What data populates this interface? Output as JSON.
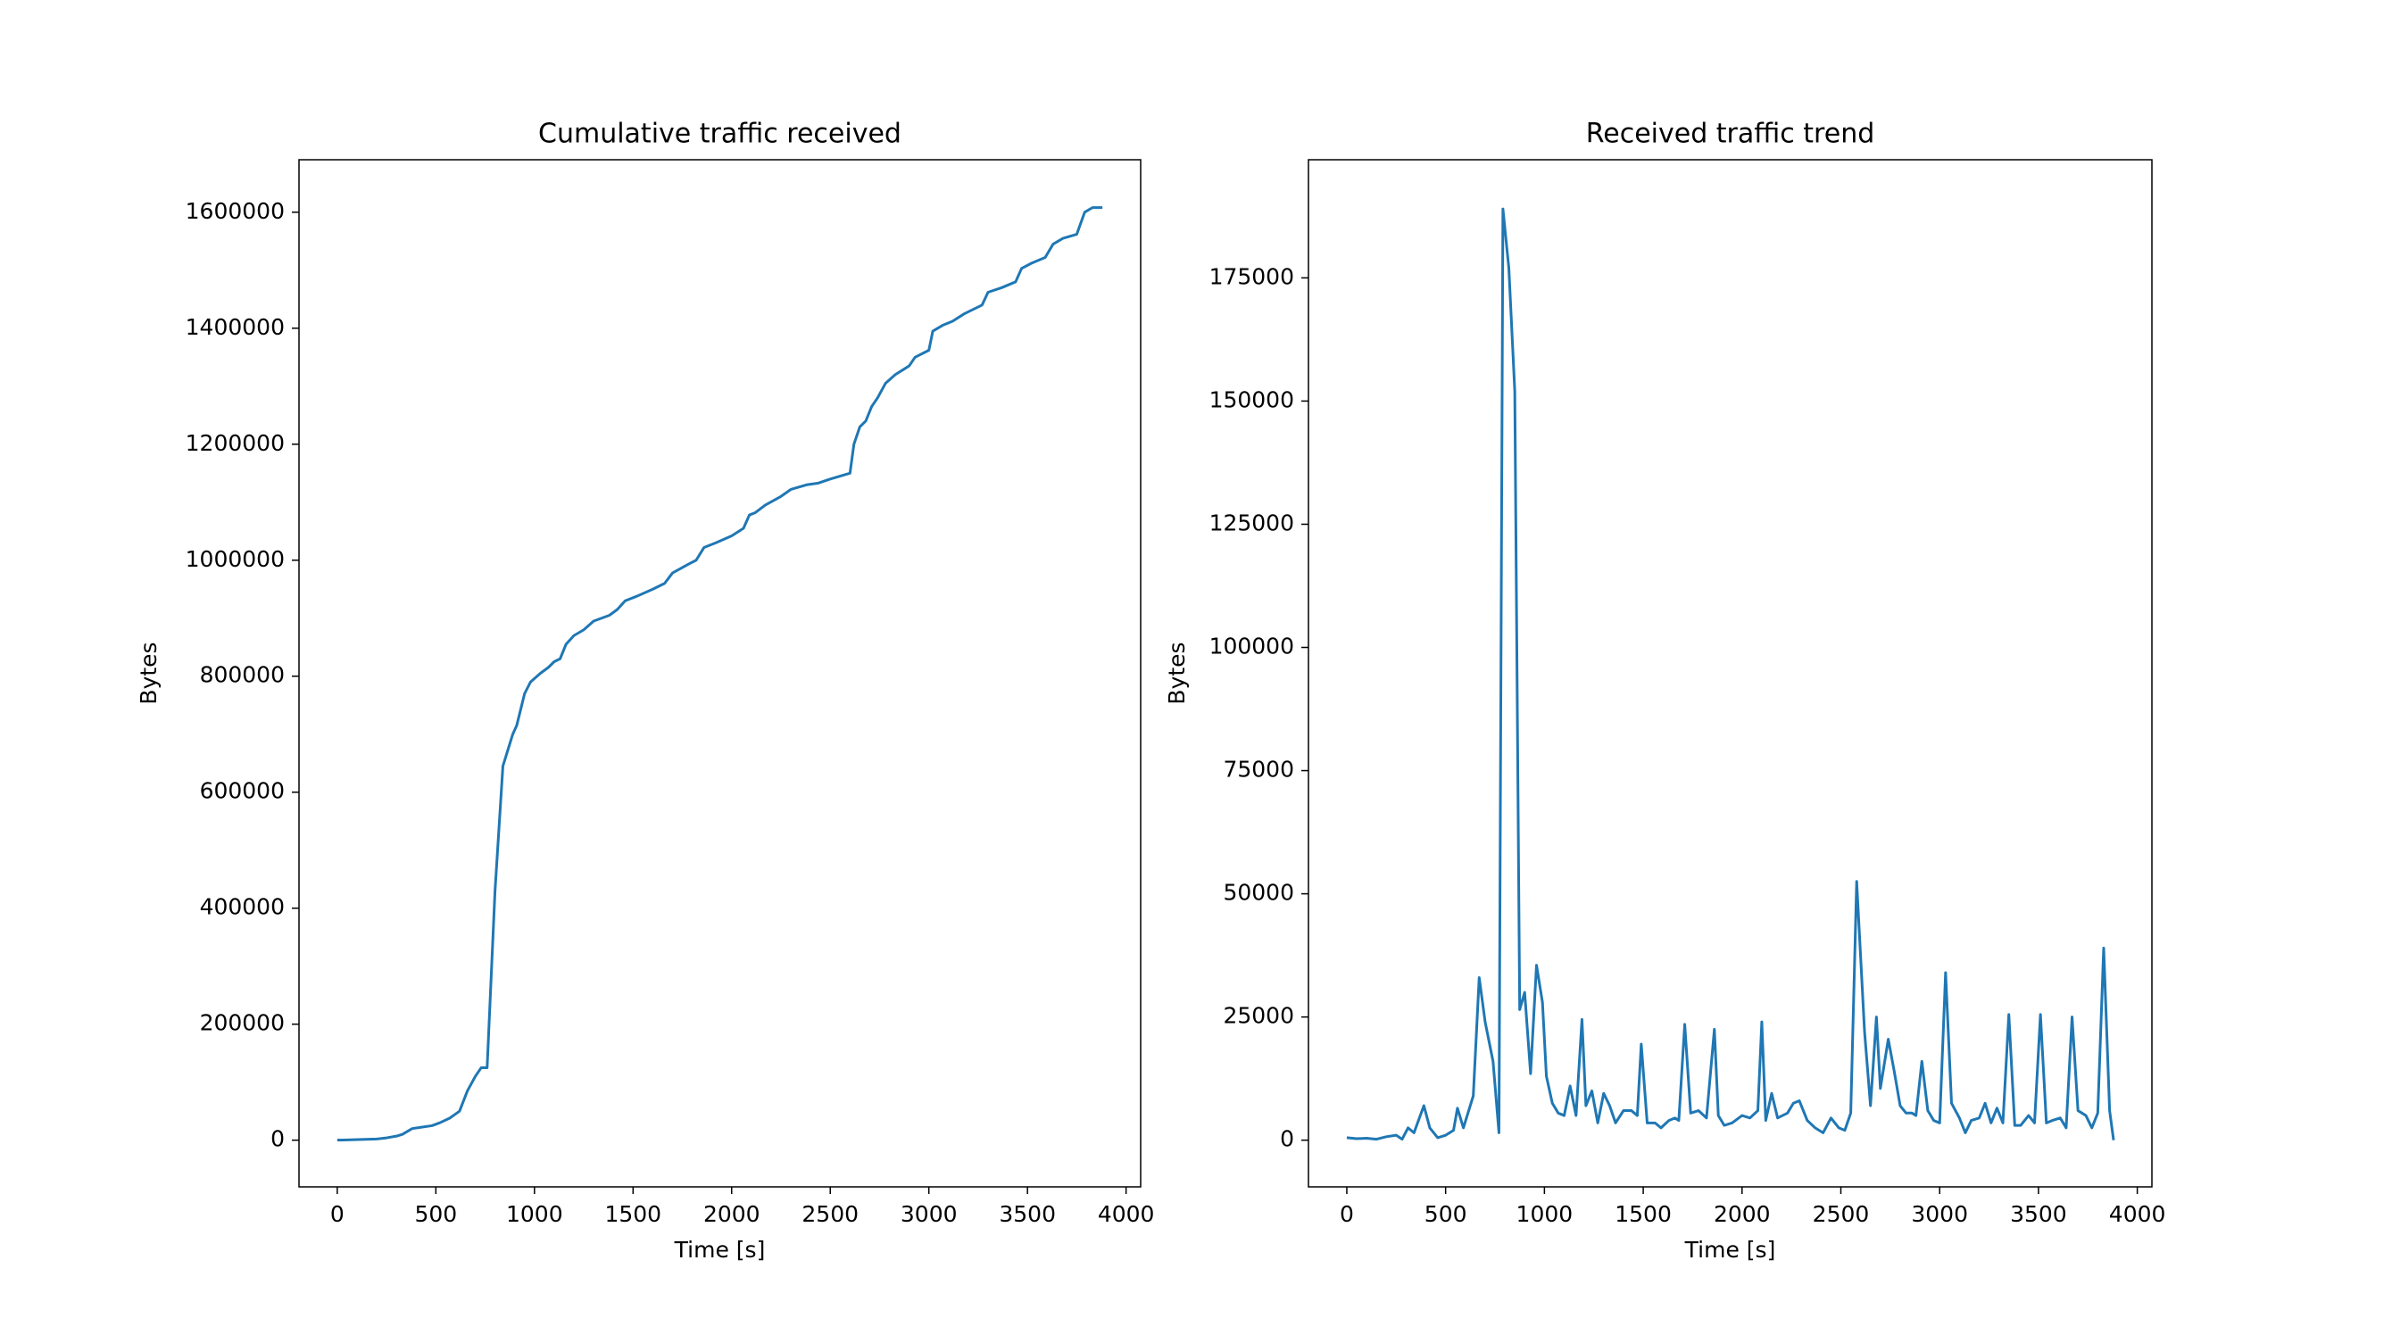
{
  "chart_data": [
    {
      "type": "line",
      "title": "Cumulative traffic received",
      "xlabel": "Time [s]",
      "ylabel": "Bytes",
      "color": "#1f77b4",
      "xlim": [
        -194,
        4074
      ],
      "ylim": [
        -80500,
        1690500
      ],
      "xticks": [
        0,
        500,
        1000,
        1500,
        2000,
        2500,
        3000,
        3500,
        4000
      ],
      "yticks": [
        0,
        200000,
        400000,
        600000,
        800000,
        1000000,
        1200000,
        1400000,
        1600000
      ],
      "x": [
        0,
        200,
        250,
        300,
        330,
        380,
        420,
        480,
        520,
        570,
        620,
        660,
        700,
        730,
        760,
        800,
        840,
        890,
        910,
        950,
        980,
        1030,
        1070,
        1100,
        1130,
        1160,
        1200,
        1250,
        1300,
        1380,
        1420,
        1460,
        1520,
        1600,
        1660,
        1700,
        1780,
        1820,
        1860,
        1920,
        2000,
        2060,
        2090,
        2120,
        2170,
        2250,
        2300,
        2380,
        2440,
        2500,
        2580,
        2600,
        2620,
        2650,
        2680,
        2710,
        2740,
        2780,
        2830,
        2900,
        2930,
        3000,
        3020,
        3070,
        3120,
        3180,
        3270,
        3300,
        3370,
        3440,
        3470,
        3520,
        3590,
        3630,
        3680,
        3750,
        3790,
        3830,
        3880
      ],
      "values": [
        0,
        2000,
        4000,
        7000,
        10000,
        20000,
        22000,
        25000,
        30000,
        38000,
        50000,
        85000,
        110000,
        125000,
        125000,
        430000,
        645000,
        700000,
        715000,
        770000,
        790000,
        805000,
        815000,
        825000,
        830000,
        855000,
        870000,
        880000,
        895000,
        905000,
        915000,
        930000,
        938000,
        950000,
        960000,
        978000,
        993000,
        1000000,
        1022000,
        1030000,
        1042000,
        1055000,
        1078000,
        1082000,
        1095000,
        1110000,
        1122000,
        1130000,
        1133000,
        1140000,
        1148000,
        1150000,
        1200000,
        1230000,
        1240000,
        1265000,
        1280000,
        1305000,
        1320000,
        1335000,
        1350000,
        1362000,
        1395000,
        1405000,
        1412000,
        1425000,
        1440000,
        1462000,
        1470000,
        1480000,
        1503000,
        1512000,
        1522000,
        1545000,
        1555000,
        1562000,
        1600000,
        1608000,
        1608000
      ]
    },
    {
      "type": "line",
      "title": "Received traffic trend",
      "xlabel": "Time [s]",
      "ylabel": "Bytes",
      "color": "#1f77b4",
      "xlim": [
        -194,
        4074
      ],
      "ylim": [
        -9475,
        198975
      ],
      "xticks": [
        0,
        500,
        1000,
        1500,
        2000,
        2500,
        3000,
        3500,
        4000
      ],
      "yticks": [
        0,
        25000,
        50000,
        75000,
        100000,
        125000,
        150000,
        175000
      ],
      "x": [
        0,
        50,
        100,
        150,
        200,
        250,
        280,
        310,
        340,
        390,
        420,
        460,
        500,
        540,
        560,
        590,
        640,
        670,
        700,
        740,
        770,
        790,
        820,
        850,
        875,
        900,
        930,
        960,
        990,
        1010,
        1040,
        1070,
        1100,
        1130,
        1160,
        1190,
        1210,
        1240,
        1270,
        1300,
        1330,
        1360,
        1400,
        1440,
        1470,
        1490,
        1520,
        1560,
        1590,
        1630,
        1660,
        1680,
        1710,
        1740,
        1780,
        1820,
        1860,
        1880,
        1910,
        1950,
        2000,
        2040,
        2080,
        2100,
        2120,
        2150,
        2180,
        2230,
        2260,
        2290,
        2330,
        2370,
        2410,
        2450,
        2490,
        2520,
        2550,
        2580,
        2620,
        2650,
        2680,
        2700,
        2740,
        2770,
        2800,
        2830,
        2860,
        2880,
        2910,
        2940,
        2970,
        3000,
        3030,
        3060,
        3100,
        3130,
        3160,
        3200,
        3230,
        3260,
        3290,
        3320,
        3350,
        3380,
        3410,
        3450,
        3480,
        3510,
        3540,
        3570,
        3610,
        3640,
        3670,
        3700,
        3740,
        3770,
        3800,
        3830,
        3860,
        3880
      ],
      "values": [
        500,
        300,
        400,
        200,
        700,
        1000,
        200,
        2500,
        1500,
        7000,
        2500,
        500,
        1000,
        2000,
        6500,
        2500,
        9000,
        33000,
        24000,
        16000,
        1500,
        189000,
        177000,
        152000,
        26500,
        30000,
        13500,
        35500,
        28000,
        13000,
        7500,
        5500,
        5000,
        11000,
        5000,
        24500,
        7000,
        10000,
        3500,
        9500,
        7000,
        3500,
        6000,
        6000,
        5000,
        19500,
        3500,
        3500,
        2500,
        4000,
        4500,
        4000,
        23500,
        5500,
        6000,
        4500,
        22500,
        5000,
        3000,
        3500,
        5000,
        4500,
        6000,
        24000,
        4000,
        9500,
        4500,
        5500,
        7500,
        8000,
        4000,
        2500,
        1500,
        4500,
        2500,
        2000,
        5500,
        52500,
        22000,
        7000,
        25000,
        10500,
        20500,
        14000,
        7000,
        5500,
        5500,
        5000,
        16000,
        6000,
        4000,
        3500,
        34000,
        7500,
        4500,
        1500,
        4000,
        4500,
        7500,
        3500,
        6500,
        3500,
        25500,
        3000,
        3000,
        5000,
        3500,
        25500,
        3500,
        4000,
        4500,
        2500,
        25000,
        6000,
        5000,
        2500,
        5500,
        39000,
        6000,
        0
      ]
    }
  ]
}
